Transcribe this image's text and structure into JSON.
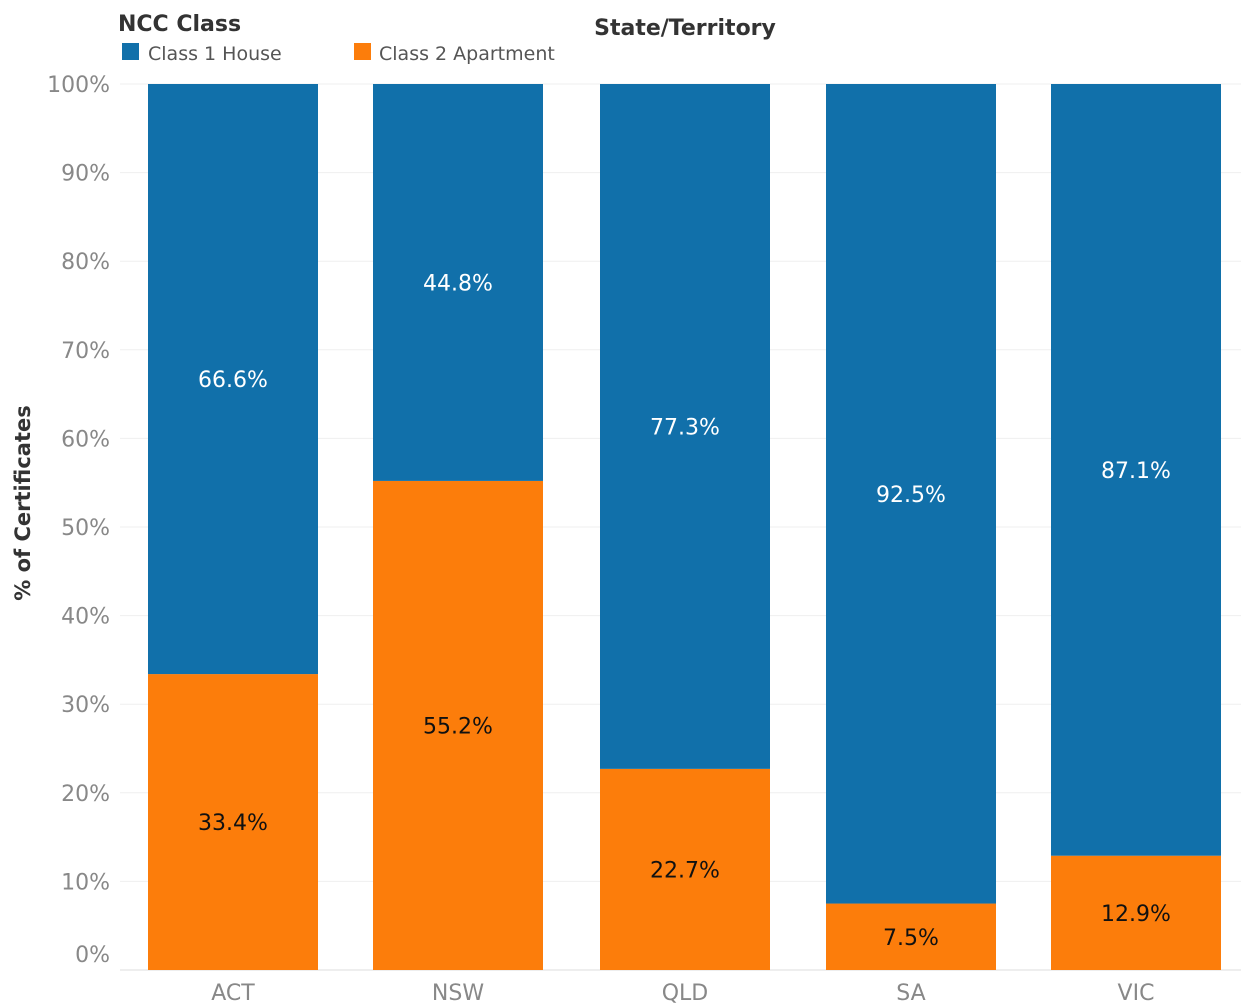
{
  "colors": {
    "class1": "#1170aa",
    "class2": "#fc7d0b",
    "label_on_class1": "#ffffff",
    "label_on_class2": "#111111",
    "grid": "#efefef",
    "axis_text": "#888888"
  },
  "legend": {
    "title": "NCC Class",
    "items": [
      {
        "label": "Class 1 House",
        "color": "#1170aa"
      },
      {
        "label": "Class 2 Apartment",
        "color": "#fc7d0b"
      }
    ]
  },
  "chart_data": {
    "type": "bar",
    "stacked": true,
    "column_header": "State/Territory",
    "ylabel": "% of Certificates",
    "xlabel": "",
    "categories": [
      "ACT",
      "NSW",
      "QLD",
      "SA",
      "VIC"
    ],
    "series": [
      {
        "name": "Class 2 Apartment",
        "values": [
          33.4,
          55.2,
          22.7,
          7.5,
          12.9
        ],
        "labels": [
          "33.4%",
          "55.2%",
          "22.7%",
          "7.5%",
          "12.9%"
        ]
      },
      {
        "name": "Class 1 House",
        "values": [
          66.6,
          44.8,
          77.3,
          92.5,
          87.1
        ],
        "labels": [
          "66.6%",
          "44.8%",
          "77.3%",
          "92.5%",
          "87.1%"
        ]
      }
    ],
    "ylim": [
      0,
      100
    ],
    "yticks": [
      "0%",
      "10%",
      "20%",
      "30%",
      "40%",
      "50%",
      "60%",
      "70%",
      "80%",
      "90%",
      "100%"
    ],
    "grid": true,
    "legend_position": "top-left"
  }
}
